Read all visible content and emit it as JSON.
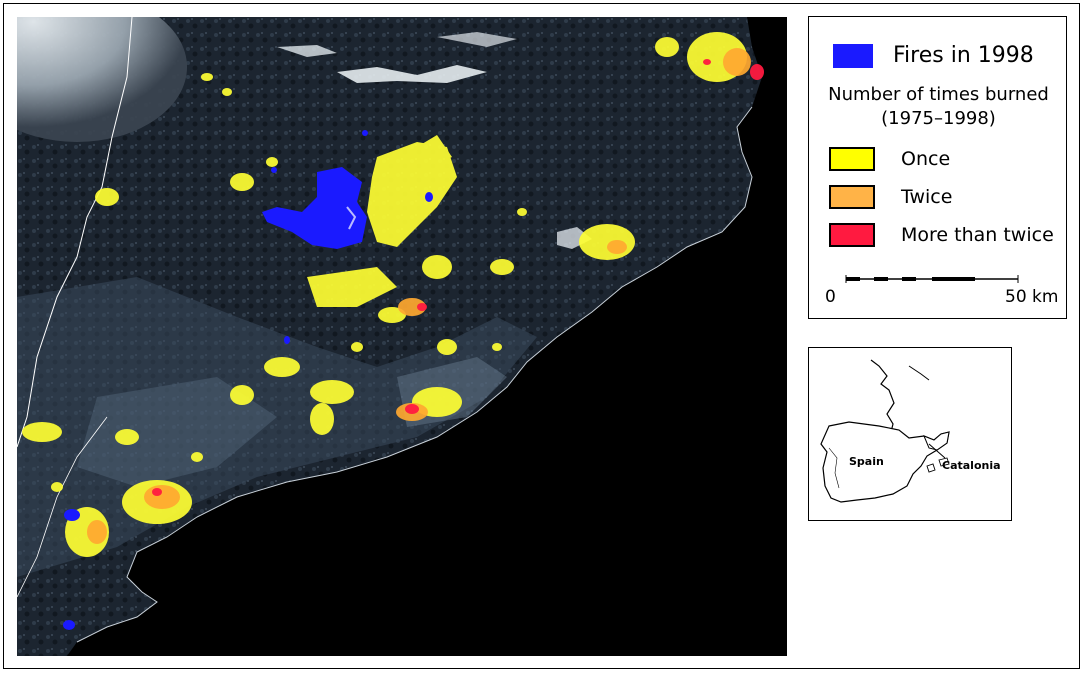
{
  "legend": {
    "fires_label": "Fires in 1998",
    "title_line1": "Number of times burned",
    "title_line2": "(1975–1998)",
    "classes": [
      {
        "label": "Once",
        "color": "#ffff00"
      },
      {
        "label": "Twice",
        "color": "#ffb347"
      },
      {
        "label": "More than twice",
        "color": "#ff1a40"
      }
    ],
    "fires_color": "#1a1aff",
    "scale_start": "0",
    "scale_end": "50 km"
  },
  "inset": {
    "spain_label": "Spain",
    "catalonia_label": "Catalonia"
  }
}
